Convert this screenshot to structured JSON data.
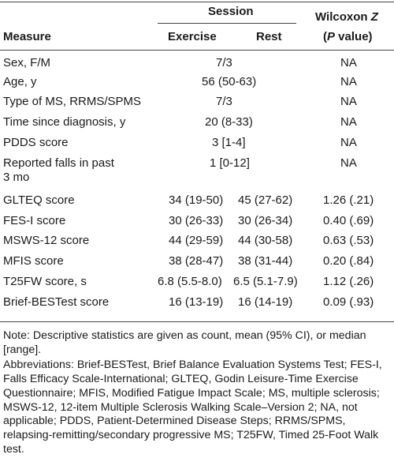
{
  "table": {
    "header": {
      "session": "Session",
      "measure": "Measure",
      "exercise": "Exercise",
      "rest": "Rest",
      "wilcoxon": "Wilcoxon",
      "wilcoxon_z": "Z",
      "p_value_open": "(",
      "p_value_p": "P",
      "p_value_close": " value)"
    },
    "rows": [
      {
        "measure": "Sex, F/M",
        "combined": "7/3",
        "wilcoxon": "NA"
      },
      {
        "measure": "Age, y",
        "combined": "56 (50-63)",
        "wilcoxon": "NA"
      },
      {
        "measure": "Type of MS, RRMS/SPMS",
        "combined": "7/3",
        "wilcoxon": "NA"
      },
      {
        "measure": "Time since diagnosis, y",
        "combined": "20 (8-33)",
        "wilcoxon": "NA"
      },
      {
        "measure": "PDDS score",
        "combined": "3 [1-4]",
        "wilcoxon": "NA"
      },
      {
        "measure": "Reported falls in past",
        "measure_line2": "3 mo",
        "combined": "1 [0-12]",
        "wilcoxon": "NA"
      },
      {
        "measure": "GLTEQ score",
        "exercise": "34 (19-50)",
        "rest": "45 (27-62)",
        "wilcoxon": "1.26 (.21)"
      },
      {
        "measure": "FES-I score",
        "exercise": "30 (26-33)",
        "rest": "30 (26-34)",
        "wilcoxon": "0.40 (.69)"
      },
      {
        "measure": "MSWS-12 score",
        "exercise": "44 (29-59)",
        "rest": "44 (30-58)",
        "wilcoxon": "0.63 (.53)"
      },
      {
        "measure": "MFIS score",
        "exercise": "38 (28-47)",
        "rest": "38 (31-44)",
        "wilcoxon": "0.20 (.84)"
      },
      {
        "measure": "T25FW score, s",
        "exercise": "6.8 (5.5-8.0)",
        "rest": "6.5 (5.1-7.9)",
        "wilcoxon": "1.12 (.26)"
      },
      {
        "measure": "Brief-BESTest score",
        "exercise": "16 (13-19)",
        "rest": "16 (14-19)",
        "wilcoxon": "0.09 (.93)"
      }
    ]
  },
  "notes": {
    "note": "Note: Descriptive statistics are given as count, mean (95% CI), or median [range].",
    "abbreviations": "Abbreviations: Brief-BESTest, Brief Balance Evaluation Systems Test; FES-I, Falls Efficacy Scale-International; GLTEQ, Godin Leisure-Time Exercise Questionnaire; MFIS, Modified Fatigue Impact Scale; MS, multiple sclerosis; MSWS-12, 12-item Multiple Sclerosis Walking Scale–Version 2; NA, not applicable; PDDS, Patient-Determined Disease Steps; RRMS/SPMS, relapsing-remitting/secondary progressive MS; T25FW, Timed 25-Foot Walk test."
  }
}
